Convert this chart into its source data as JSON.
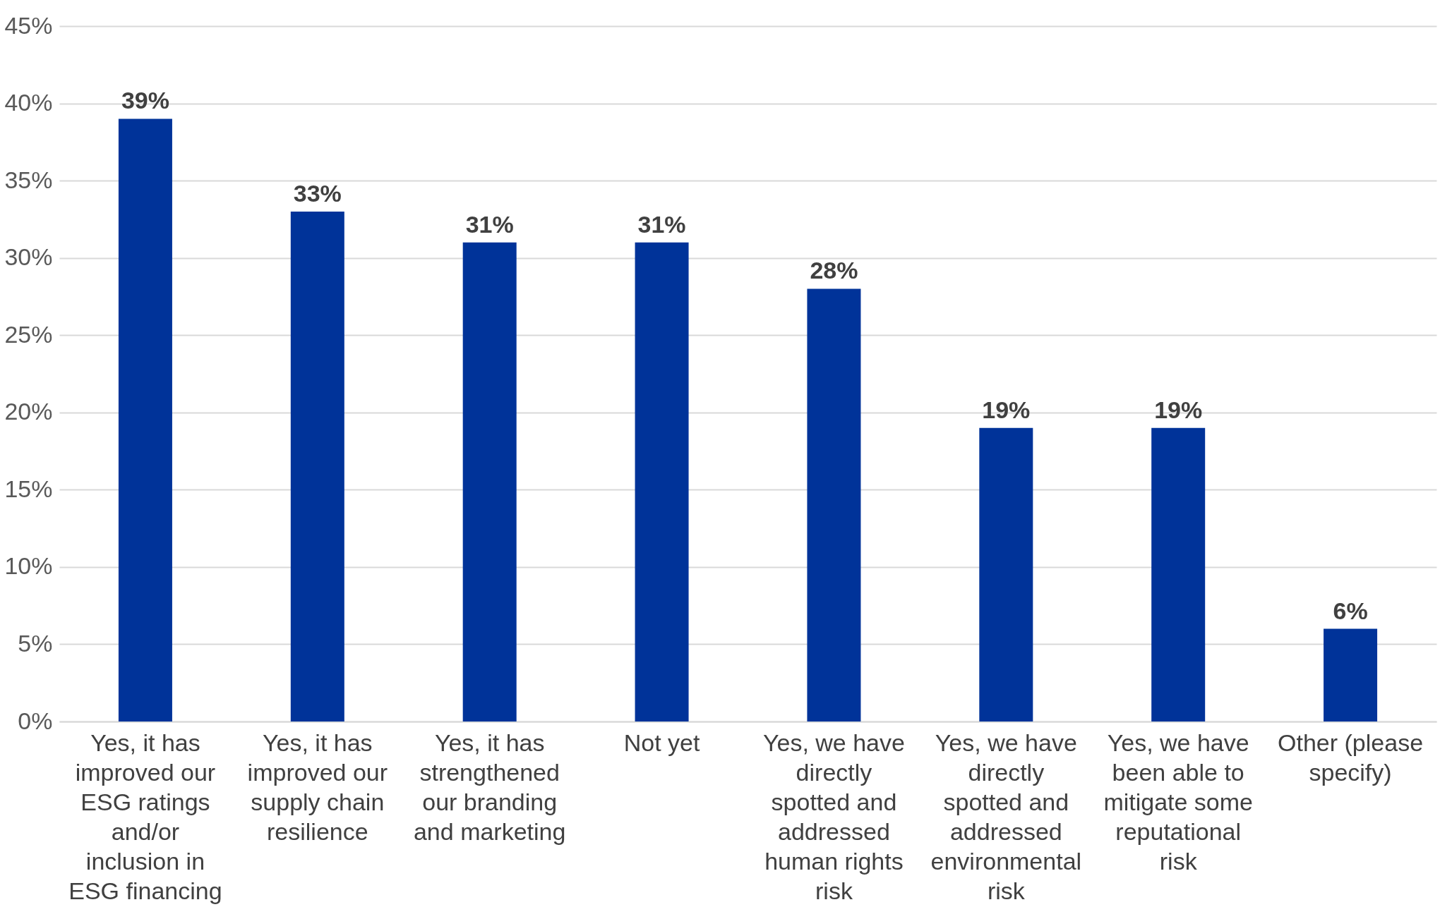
{
  "chart_data": {
    "type": "bar",
    "categories": [
      "Yes, it has improved our ESG ratings and/or inclusion in ESG financing",
      "Yes, it has improved our supply chain resilience",
      "Yes, it has strengthened our branding and marketing",
      "Not yet",
      "Yes, we have directly spotted and addressed human rights risk",
      "Yes, we have directly spotted and addressed environmental risk",
      "Yes, we have been able to mitigate some reputational risk",
      "Other (please specify)"
    ],
    "values": [
      39,
      33,
      31,
      31,
      28,
      19,
      19,
      6
    ],
    "value_labels": [
      "39%",
      "33%",
      "31%",
      "31%",
      "28%",
      "19%",
      "19%",
      "6%"
    ],
    "color": "#003399",
    "ylim": [
      0,
      45
    ],
    "yticks": [
      {
        "value": 0,
        "label": "0%"
      },
      {
        "value": 5,
        "label": "5%"
      },
      {
        "value": 10,
        "label": "10%"
      },
      {
        "value": 15,
        "label": "15%"
      },
      {
        "value": 20,
        "label": "20%"
      },
      {
        "value": 25,
        "label": "25%"
      },
      {
        "value": 30,
        "label": "30%"
      },
      {
        "value": 35,
        "label": "35%"
      },
      {
        "value": 40,
        "label": "40%"
      },
      {
        "value": 45,
        "label": "45%"
      }
    ],
    "grid": "y"
  }
}
